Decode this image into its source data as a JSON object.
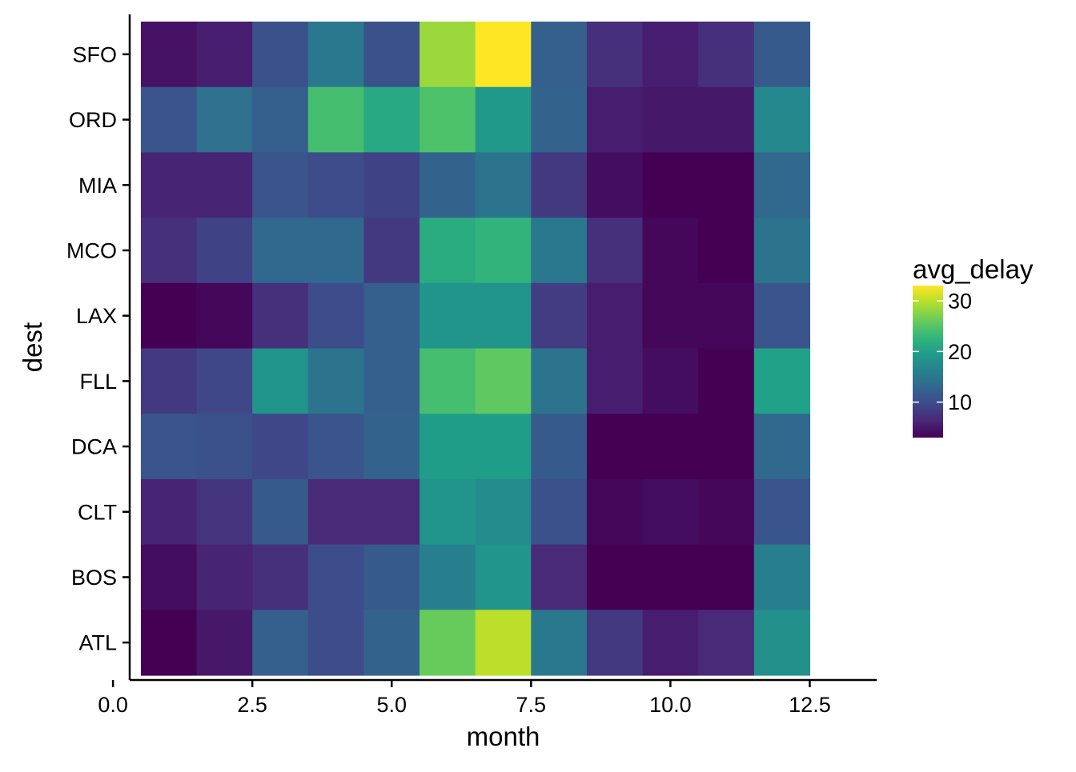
{
  "chart_data": {
    "type": "heatmap",
    "xlabel": "month",
    "ylabel": "dest",
    "x_ticks": [
      "0.0",
      "2.5",
      "5.0",
      "7.5",
      "10.0",
      "12.5"
    ],
    "x_tick_values": [
      0,
      2.5,
      5,
      7.5,
      10,
      12.5
    ],
    "xlim": [
      0.3,
      13.7
    ],
    "months": [
      1,
      2,
      3,
      4,
      5,
      6,
      7,
      8,
      9,
      10,
      11,
      12
    ],
    "destinations": [
      "SFO",
      "ORD",
      "MIA",
      "MCO",
      "LAX",
      "FLL",
      "DCA",
      "CLT",
      "BOS",
      "ATL"
    ],
    "values": [
      [
        4.5,
        5.5,
        10.5,
        15.0,
        10.5,
        28.5,
        33.0,
        12.0,
        7.0,
        5.5,
        7.0,
        11.5
      ],
      [
        11.0,
        14.0,
        12.0,
        24.0,
        21.0,
        24.5,
        19.0,
        12.5,
        5.5,
        5.0,
        5.0,
        17.0
      ],
      [
        6.0,
        6.0,
        11.0,
        10.0,
        9.0,
        12.5,
        14.5,
        8.0,
        4.0,
        1.0,
        3.0,
        13.0
      ],
      [
        7.0,
        9.0,
        13.0,
        13.0,
        8.0,
        21.5,
        22.5,
        15.0,
        7.0,
        3.5,
        1.5,
        14.5
      ],
      [
        2.0,
        3.5,
        7.0,
        10.0,
        12.0,
        18.5,
        18.5,
        8.5,
        5.5,
        3.5,
        3.5,
        11.0
      ],
      [
        8.0,
        9.5,
        18.5,
        14.5,
        12.0,
        24.0,
        25.5,
        14.5,
        5.5,
        4.0,
        2.5,
        20.0
      ],
      [
        11.0,
        10.5,
        9.5,
        11.0,
        12.5,
        19.5,
        19.5,
        11.5,
        3.0,
        3.0,
        2.0,
        13.0
      ],
      [
        6.0,
        7.5,
        11.5,
        6.5,
        6.5,
        18.5,
        17.5,
        10.5,
        3.5,
        4.0,
        3.5,
        11.0
      ],
      [
        4.0,
        6.0,
        7.0,
        10.0,
        11.5,
        16.0,
        18.5,
        6.5,
        1.5,
        1.5,
        1.5,
        16.0
      ],
      [
        3.0,
        5.0,
        12.0,
        10.0,
        12.5,
        26.0,
        30.0,
        15.0,
        8.0,
        5.5,
        6.5,
        18.0
      ]
    ],
    "colorbar": {
      "title": "avg_delay",
      "min": 3.0,
      "max": 33.0,
      "ticks": [
        10,
        20,
        30
      ],
      "tick_labels": [
        "10",
        "20",
        "30"
      ],
      "palette": [
        "#440154",
        "#482878",
        "#3e4989",
        "#31688e",
        "#26828e",
        "#1f9e89",
        "#35b779",
        "#6dcd59",
        "#b4de2c",
        "#fde725"
      ]
    },
    "legend_position": "right",
    "grid": false
  }
}
